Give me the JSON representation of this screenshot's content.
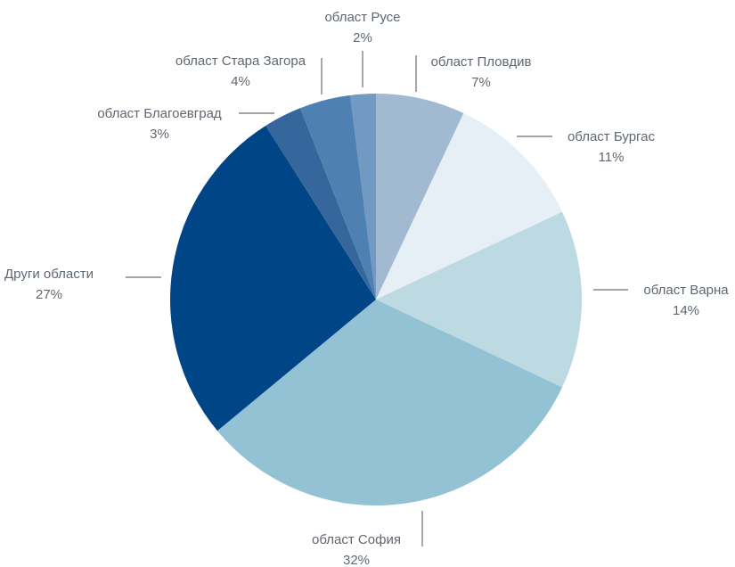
{
  "chart_data": {
    "type": "pie",
    "title": "",
    "start_angle_deg": 0,
    "direction": "clockwise",
    "slices": [
      {
        "label": "област Пловдив",
        "pct_label": "7%",
        "value": 7,
        "color": "#a2b9d2"
      },
      {
        "label": "област Бургас",
        "pct_label": "11%",
        "value": 11,
        "color": "#e7eff6"
      },
      {
        "label": "област Варна",
        "pct_label": "14%",
        "value": 14,
        "color": "#bddae3"
      },
      {
        "label": "област София",
        "pct_label": "32%",
        "value": 32,
        "color": "#93c2d5"
      },
      {
        "label": "Други области",
        "pct_label": "27%",
        "value": 27,
        "color": "#004586"
      },
      {
        "label": "област Благоевград",
        "pct_label": "3%",
        "value": 3,
        "color": "#36679c"
      },
      {
        "label": "област Стара Загора",
        "pct_label": "4%",
        "value": 4,
        "color": "#4f80b2"
      },
      {
        "label": "област Русе",
        "pct_label": "2%",
        "value": 2,
        "color": "#7299c2"
      }
    ]
  }
}
